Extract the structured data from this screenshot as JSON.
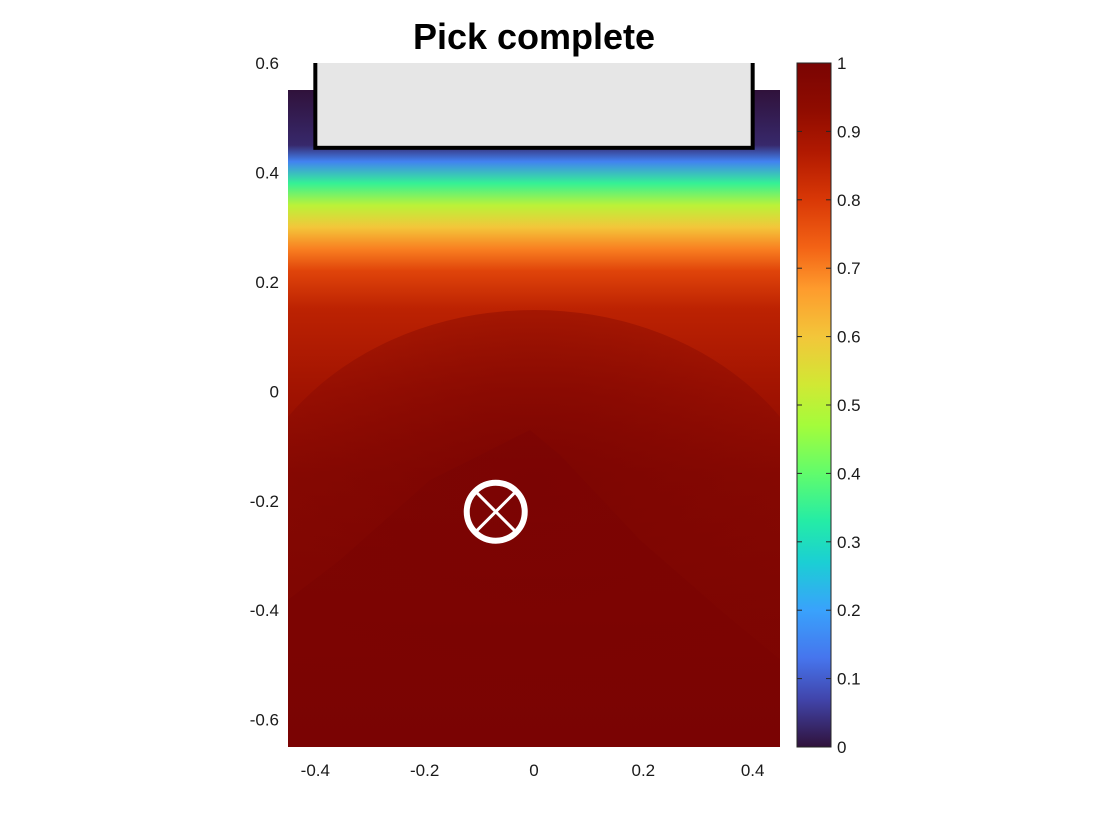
{
  "chart_data": {
    "type": "heatmap",
    "title": "Pick complete",
    "xlabel": "",
    "ylabel": "",
    "xlim": [
      -0.45,
      0.45
    ],
    "ylim": [
      -0.65,
      0.6
    ],
    "x_ticks": [
      "-0.4",
      "-0.2",
      "0",
      "0.2",
      "0.4"
    ],
    "x_tick_values": [
      -0.4,
      -0.2,
      0,
      0.2,
      0.4
    ],
    "y_ticks": [
      "-0.6",
      "-0.4",
      "-0.2",
      "0",
      "0.2",
      "0.4",
      "0.6"
    ],
    "y_tick_values": [
      -0.6,
      -0.4,
      -0.2,
      0,
      0.2,
      0.4,
      0.6
    ],
    "colormap": "turbo",
    "colorbar": {
      "limits": [
        0,
        1
      ],
      "ticks": [
        "0",
        "0.1",
        "0.2",
        "0.3",
        "0.4",
        "0.5",
        "0.6",
        "0.7",
        "0.8",
        "0.9",
        "1"
      ],
      "tick_values": [
        0,
        0.1,
        0.2,
        0.3,
        0.4,
        0.5,
        0.6,
        0.7,
        0.8,
        0.9,
        1
      ]
    },
    "field_profile": {
      "description_values": "value vs y along the plot",
      "y": [
        0.55,
        0.45,
        0.42,
        0.38,
        0.34,
        0.3,
        0.26,
        0.22,
        0.15,
        0.0,
        -0.15,
        -0.4,
        -0.65
      ],
      "value": [
        0.0,
        0.03,
        0.15,
        0.35,
        0.5,
        0.6,
        0.7,
        0.78,
        0.85,
        0.9,
        0.95,
        0.98,
        1.0
      ]
    },
    "obstacle": {
      "x": [
        -0.4,
        0.4
      ],
      "y": [
        0.445,
        0.6
      ],
      "fill": "#e6e6e6",
      "edge": "#000000"
    },
    "marker": {
      "x": -0.07,
      "y": -0.22,
      "symbol": "circled-x",
      "color": "#ffffff"
    }
  },
  "colors": {
    "background": "#ffffff",
    "axis": "#262626",
    "marker": "#ffffff"
  }
}
